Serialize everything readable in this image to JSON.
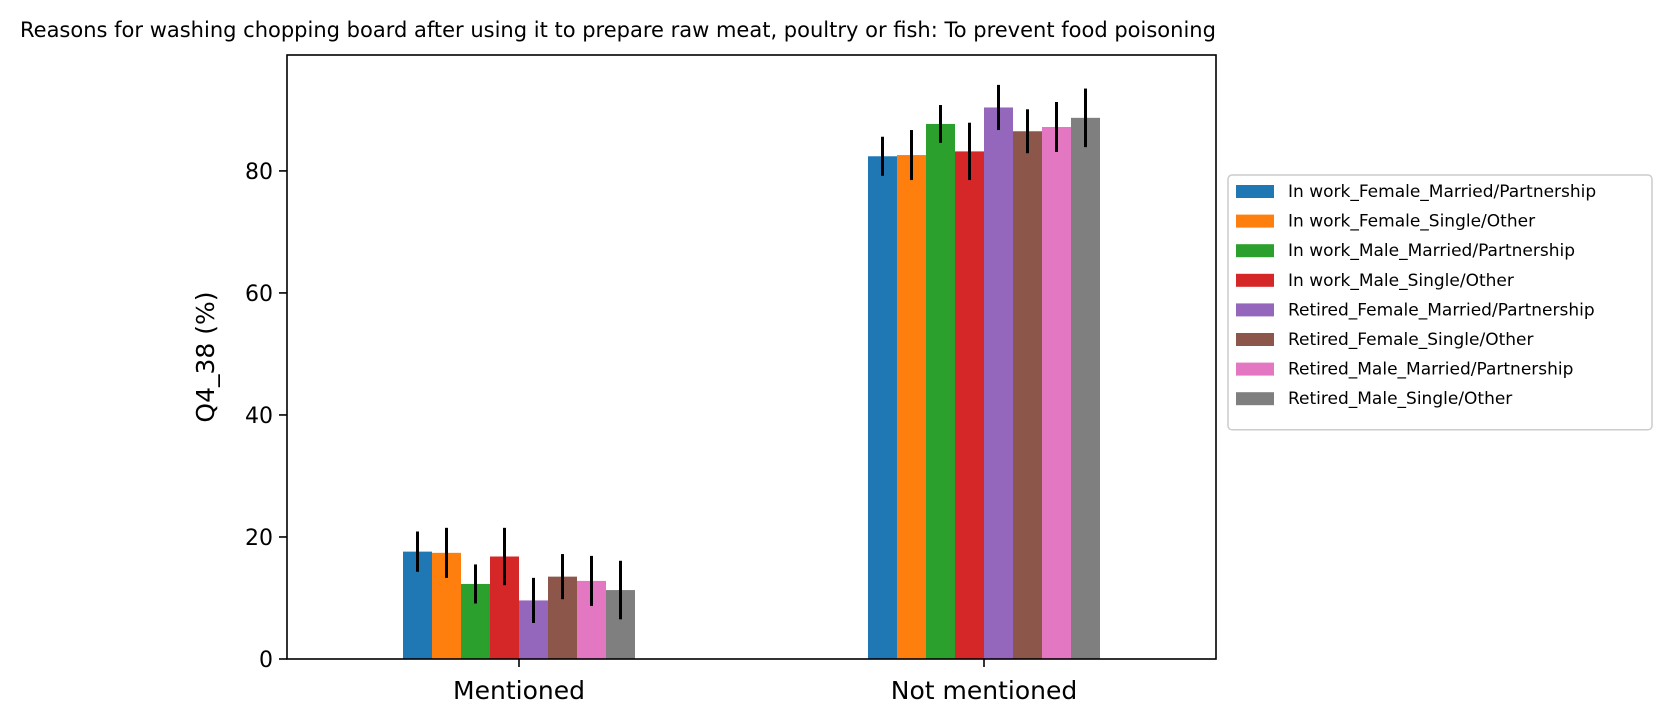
{
  "chart_data": {
    "type": "bar",
    "title": "Reasons for washing chopping board after using it to prepare raw meat, poultry or fish: To prevent food poisoning",
    "xlabel": "",
    "ylabel": "Q4_38 (%)",
    "ylim": [
      0,
      99
    ],
    "yticks": [
      0,
      20,
      40,
      60,
      80
    ],
    "categories": [
      "Mentioned",
      "Not mentioned"
    ],
    "grid": false,
    "legend_position": "right",
    "series": [
      {
        "name": "In work_Female_Married/Partnership",
        "color": "#1f77b4",
        "values": [
          17.6,
          82.4
        ],
        "error": [
          3.3,
          3.2
        ]
      },
      {
        "name": "In work_Female_Single/Other",
        "color": "#ff7f0e",
        "values": [
          17.4,
          82.6
        ],
        "error": [
          4.1,
          4.1
        ]
      },
      {
        "name": "In work_Male_Married/Partnership",
        "color": "#2ca02c",
        "values": [
          12.3,
          87.7
        ],
        "error": [
          3.2,
          3.1
        ]
      },
      {
        "name": "In work_Male_Single/Other",
        "color": "#d62728",
        "values": [
          16.8,
          83.2
        ],
        "error": [
          4.7,
          4.7
        ]
      },
      {
        "name": "Retired_Female_Married/Partnership",
        "color": "#9467bd",
        "values": [
          9.6,
          90.4
        ],
        "error": [
          3.7,
          3.7
        ]
      },
      {
        "name": "Retired_Female_Single/Other",
        "color": "#8c564b",
        "values": [
          13.5,
          86.5
        ],
        "error": [
          3.7,
          3.6
        ]
      },
      {
        "name": "Retired_Male_Married/Partnership",
        "color": "#e377c2",
        "values": [
          12.8,
          87.2
        ],
        "error": [
          4.1,
          4.1
        ]
      },
      {
        "name": "Retired_Male_Single/Other",
        "color": "#7f7f7f",
        "values": [
          11.3,
          88.7
        ],
        "error": [
          4.8,
          4.8
        ]
      }
    ]
  }
}
